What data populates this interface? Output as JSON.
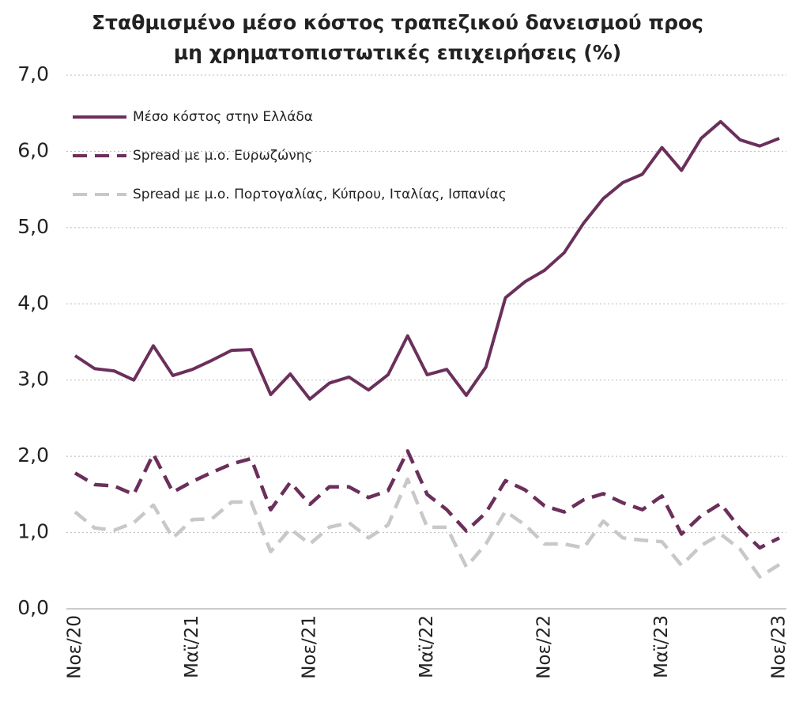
{
  "chart_data": {
    "type": "line",
    "title": "Σταθμισμένο μέσο κόστος τραπεζικού δανεισμού προς μη χρηματοπιστωτικές επιχειρήσεις (%)",
    "categories": [
      "Νοε/20",
      null,
      null,
      null,
      null,
      null,
      "Μαϊ/21",
      null,
      null,
      null,
      null,
      null,
      "Νοε/21",
      null,
      null,
      null,
      null,
      null,
      "Μαϊ/22",
      null,
      null,
      null,
      null,
      null,
      "Νοε/22",
      null,
      null,
      null,
      null,
      null,
      "Μαϊ/23",
      null,
      null,
      null,
      null,
      null,
      "Νοε/23"
    ],
    "series": [
      {
        "name": "Μέσο κόστος στην Ελλάδα",
        "color": "#6b2f5b",
        "dash": "solid",
        "values": [
          3.32,
          3.15,
          3.12,
          3.0,
          3.45,
          3.06,
          3.14,
          3.26,
          3.39,
          3.4,
          2.81,
          3.08,
          2.75,
          2.96,
          3.04,
          2.87,
          3.07,
          3.58,
          3.07,
          3.14,
          2.8,
          3.17,
          4.08,
          4.29,
          4.44,
          4.67,
          5.06,
          5.38,
          5.59,
          5.7,
          6.05,
          5.75,
          6.17,
          6.39,
          6.15,
          6.07,
          6.17
        ]
      },
      {
        "name": "Spread με μ.ο. Ευρωζώνης",
        "color": "#6b2f5b",
        "dash": "dashed",
        "values": [
          1.78,
          1.63,
          1.61,
          1.5,
          2.03,
          1.53,
          1.67,
          1.79,
          1.9,
          1.97,
          1.3,
          1.66,
          1.37,
          1.6,
          1.6,
          1.46,
          1.55,
          2.07,
          1.5,
          1.3,
          1.02,
          1.26,
          1.68,
          1.56,
          1.35,
          1.27,
          1.43,
          1.51,
          1.39,
          1.3,
          1.48,
          0.98,
          1.22,
          1.38,
          1.05,
          0.8,
          0.93
        ]
      },
      {
        "name": "Spread με μ.ο. Πορτογαλίας, Κύπρου, Ιταλίας, Ισπανίας",
        "color": "#c8c8c8",
        "dash": "dashed",
        "values": [
          1.27,
          1.06,
          1.03,
          1.13,
          1.36,
          0.93,
          1.17,
          1.18,
          1.4,
          1.4,
          0.75,
          1.05,
          0.85,
          1.07,
          1.13,
          0.93,
          1.1,
          1.7,
          1.07,
          1.07,
          0.55,
          0.85,
          1.28,
          1.1,
          0.85,
          0.85,
          0.8,
          1.15,
          0.93,
          0.9,
          0.88,
          0.57,
          0.83,
          0.98,
          0.78,
          0.42,
          0.58
        ]
      }
    ],
    "ylim": [
      0,
      7
    ],
    "yticks": [
      {
        "value": 0,
        "label": "0,0"
      },
      {
        "value": 1,
        "label": "1,0"
      },
      {
        "value": 2,
        "label": "2,0"
      },
      {
        "value": 3,
        "label": "3,0"
      },
      {
        "value": 4,
        "label": "4,0"
      },
      {
        "value": 5,
        "label": "5,0"
      },
      {
        "value": 6,
        "label": "6,0"
      },
      {
        "value": 7,
        "label": "7,0"
      }
    ],
    "grid": true,
    "legend": "top-left"
  }
}
